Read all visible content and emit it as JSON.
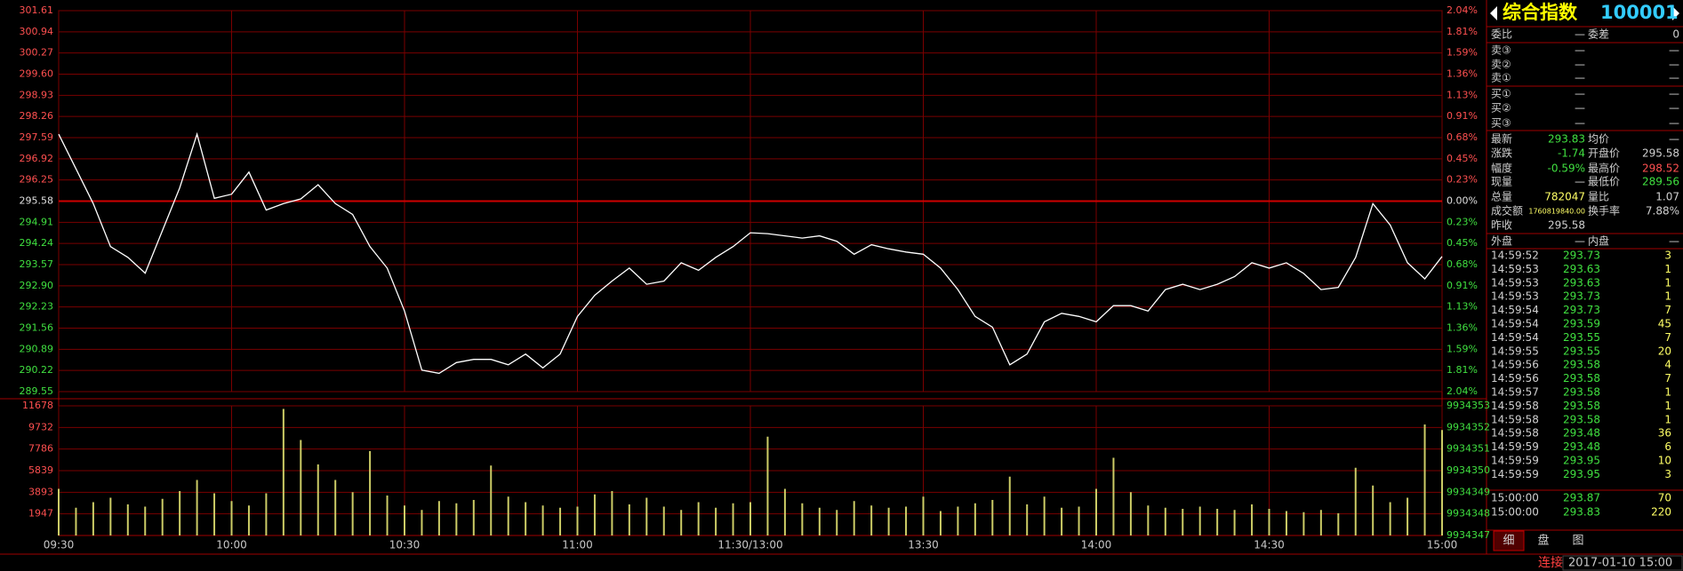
{
  "chart_data": [
    {
      "type": "line",
      "color": "#ffffff",
      "grid": true,
      "x": [
        0,
        3,
        6,
        9,
        12,
        15,
        18,
        21,
        24,
        27,
        30,
        33,
        36,
        39,
        42,
        45,
        48,
        51,
        54,
        57,
        60,
        63,
        66,
        69,
        72,
        75,
        78,
        81,
        84,
        87,
        90,
        93,
        96,
        99,
        102,
        105,
        108,
        111,
        114,
        117,
        120,
        123,
        126,
        129,
        132,
        135,
        138,
        141,
        144,
        147,
        150,
        153,
        156,
        159,
        162,
        165,
        168,
        171,
        174,
        177,
        180,
        183,
        186,
        189,
        192,
        195,
        198,
        201,
        204,
        207,
        210,
        213,
        216,
        219,
        222,
        225,
        228,
        231,
        234,
        237,
        240
      ],
      "values": [
        297.7,
        296.6,
        295.5,
        294.14,
        293.8,
        293.3,
        294.65,
        296.0,
        297.7,
        295.67,
        295.8,
        296.5,
        295.3,
        295.5,
        295.65,
        296.1,
        295.5,
        295.16,
        294.14,
        293.46,
        292.1,
        290.23,
        290.13,
        290.47,
        290.57,
        290.57,
        290.4,
        290.74,
        290.3,
        290.74,
        291.93,
        292.6,
        293.05,
        293.46,
        292.95,
        293.05,
        293.63,
        293.39,
        293.8,
        294.14,
        294.58,
        294.55,
        294.48,
        294.41,
        294.48,
        294.31,
        293.9,
        294.2,
        294.07,
        293.97,
        293.9,
        293.46,
        292.78,
        291.93,
        291.59,
        290.4,
        290.74,
        291.76,
        292.03,
        291.93,
        291.76,
        292.27,
        292.27,
        292.1,
        292.78,
        292.95,
        292.78,
        292.95,
        293.19,
        293.63,
        293.46,
        293.63,
        293.29,
        292.78,
        292.85,
        293.8,
        295.5,
        294.82,
        293.63,
        293.12,
        293.83
      ],
      "xlim": [
        0,
        240
      ],
      "ylim": [
        289.55,
        301.61
      ],
      "yticks": [
        301.61,
        300.94,
        300.27,
        {
          "value": 299.6,
          "label": "299.60"
        },
        298.93,
        298.26,
        297.59,
        296.92,
        296.25,
        295.58,
        294.91,
        294.24,
        293.57,
        {
          "value": 292.9,
          "label": "292.90"
        },
        292.23,
        291.56,
        290.89,
        290.22,
        289.55
      ],
      "y2lim": [
        -2.04,
        2.04
      ],
      "y2ticks": [
        {
          "value": 2.04,
          "label": "2.04%"
        },
        {
          "value": 1.81,
          "label": "1.81%"
        },
        {
          "value": 1.59,
          "label": "1.59%"
        },
        {
          "value": 1.36,
          "label": "1.36%"
        },
        {
          "value": 1.13,
          "label": "1.13%"
        },
        {
          "value": 0.91,
          "label": "0.91%"
        },
        {
          "value": 0.68,
          "label": "0.68%"
        },
        {
          "value": 0.45,
          "label": "0.45%"
        },
        {
          "value": 0.23,
          "label": "0.23%"
        },
        {
          "value": 0,
          "label": "0.00%"
        },
        {
          "value": -0.23,
          "label": "0.23%"
        },
        {
          "value": -0.45,
          "label": "0.45%"
        },
        {
          "value": -0.68,
          "label": "0.68%"
        },
        {
          "value": -0.91,
          "label": "0.91%"
        },
        {
          "value": -1.13,
          "label": "1.13%"
        },
        {
          "value": -1.36,
          "label": "1.36%"
        },
        {
          "value": -1.59,
          "label": "1.59%"
        },
        {
          "value": -1.81,
          "label": "1.81%"
        },
        {
          "value": -2.04,
          "label": "2.04%"
        }
      ]
    },
    {
      "type": "bar",
      "color": "#cccc66",
      "grid": true,
      "x": [
        0,
        3,
        6,
        9,
        12,
        15,
        18,
        21,
        24,
        27,
        30,
        33,
        36,
        39,
        42,
        45,
        48,
        51,
        54,
        57,
        60,
        63,
        66,
        69,
        72,
        75,
        78,
        81,
        84,
        87,
        90,
        93,
        96,
        99,
        102,
        105,
        108,
        111,
        114,
        117,
        120,
        123,
        126,
        129,
        132,
        135,
        138,
        141,
        144,
        147,
        150,
        153,
        156,
        159,
        162,
        165,
        168,
        171,
        174,
        177,
        180,
        183,
        186,
        189,
        192,
        195,
        198,
        201,
        204,
        207,
        210,
        213,
        216,
        219,
        222,
        225,
        228,
        231,
        234,
        237,
        240
      ],
      "values": [
        4200,
        2500,
        3000,
        3400,
        2800,
        2600,
        3300,
        4000,
        5000,
        3800,
        3100,
        2700,
        3800,
        11400,
        8600,
        6400,
        5000,
        3900,
        7600,
        3600,
        2700,
        2300,
        3100,
        2900,
        3200,
        6300,
        3500,
        3000,
        2700,
        2500,
        2600,
        3700,
        4000,
        2800,
        3400,
        2600,
        2300,
        3000,
        2500,
        2900,
        3000,
        8900,
        4200,
        2900,
        2500,
        2300,
        3100,
        2700,
        2500,
        2600,
        3500,
        2200,
        2600,
        2900,
        3200,
        5300,
        2800,
        3500,
        2500,
        2600,
        4200,
        7000,
        3900,
        2700,
        2500,
        2400,
        2600,
        2400,
        2300,
        2800,
        2400,
        2200,
        2100,
        2300,
        2000,
        6100,
        4500,
        3000,
        3400,
        10000,
        9500
      ],
      "xlim": [
        0,
        240
      ],
      "xticks": [
        {
          "value": 0,
          "label": "09:30"
        },
        {
          "value": 30,
          "label": "10:00"
        },
        {
          "value": 60,
          "label": "10:30"
        },
        {
          "value": 90,
          "label": "11:00"
        },
        {
          "value": 120,
          "label": "11:30/13:00"
        },
        {
          "value": 150,
          "label": "13:30"
        },
        {
          "value": 180,
          "label": "14:00"
        },
        {
          "value": 210,
          "label": "14:30"
        },
        {
          "value": 240,
          "label": "15:00"
        }
      ],
      "ylim": [
        0,
        11678
      ],
      "yticks": [
        1947,
        3893,
        5839,
        7786,
        9732,
        11678
      ],
      "y2lim": [
        9934347,
        9934353
      ],
      "y2ticks": [
        9934347,
        9934348,
        9934349,
        9934350,
        9934351,
        9934352,
        9934353
      ]
    }
  ],
  "panel": {
    "title": "综合指数",
    "code": "100001",
    "order_stats": [
      [
        "委比",
        "—",
        "委差",
        "0"
      ]
    ],
    "asks": [
      [
        "卖③",
        "—",
        "—"
      ],
      [
        "卖②",
        "—",
        "—"
      ],
      [
        "卖①",
        "—",
        "—"
      ]
    ],
    "bids": [
      [
        "买①",
        "—",
        "—"
      ],
      [
        "买②",
        "—",
        "—"
      ],
      [
        "买③",
        "—",
        "—"
      ]
    ],
    "quotes": [
      [
        "最新",
        "293.83",
        "均价",
        "—"
      ],
      [
        "涨跌",
        "-1.74",
        "开盘价",
        "295.58"
      ],
      [
        "幅度",
        "-0.59%",
        "最高价",
        "298.52"
      ],
      [
        "现量",
        "—",
        "最低价",
        "289.56"
      ],
      [
        "总量",
        "782047",
        "量比",
        "1.07"
      ],
      [
        "成交额",
        "1760819840.00",
        "换手率",
        "7.88%"
      ],
      [
        "昨收",
        "295.58"
      ]
    ],
    "flow": [
      [
        "外盘",
        "—",
        "内盘",
        "—"
      ]
    ],
    "trades": [
      [
        "14:59:52",
        "293.73",
        "3"
      ],
      [
        "14:59:53",
        "293.63",
        "1"
      ],
      [
        "14:59:53",
        "293.63",
        "1"
      ],
      [
        "14:59:53",
        "293.73",
        "1"
      ],
      [
        "14:59:54",
        "293.73",
        "7"
      ],
      [
        "14:59:54",
        "293.59",
        "45"
      ],
      [
        "14:59:54",
        "293.55",
        "7"
      ],
      [
        "14:59:55",
        "293.55",
        "20"
      ],
      [
        "14:59:56",
        "293.58",
        "4"
      ],
      [
        "14:59:56",
        "293.58",
        "7"
      ],
      [
        "14:59:57",
        "293.58",
        "1"
      ],
      [
        "14:59:58",
        "293.58",
        "1"
      ],
      [
        "14:59:58",
        "293.58",
        "1"
      ],
      [
        "14:59:58",
        "293.48",
        "36"
      ],
      [
        "14:59:59",
        "293.48",
        "6"
      ],
      [
        "14:59:59",
        "293.95",
        "10"
      ],
      [
        "14:59:59",
        "293.95",
        "3"
      ]
    ],
    "final_trades": [
      [
        "15:00:00",
        "293.87",
        "70"
      ],
      [
        "15:00:00",
        "293.83",
        "220"
      ]
    ],
    "tabs": [
      "细",
      "盘",
      "图"
    ],
    "status": {
      "connection": "连接",
      "datetime": "2017-01-10 15:00"
    }
  }
}
